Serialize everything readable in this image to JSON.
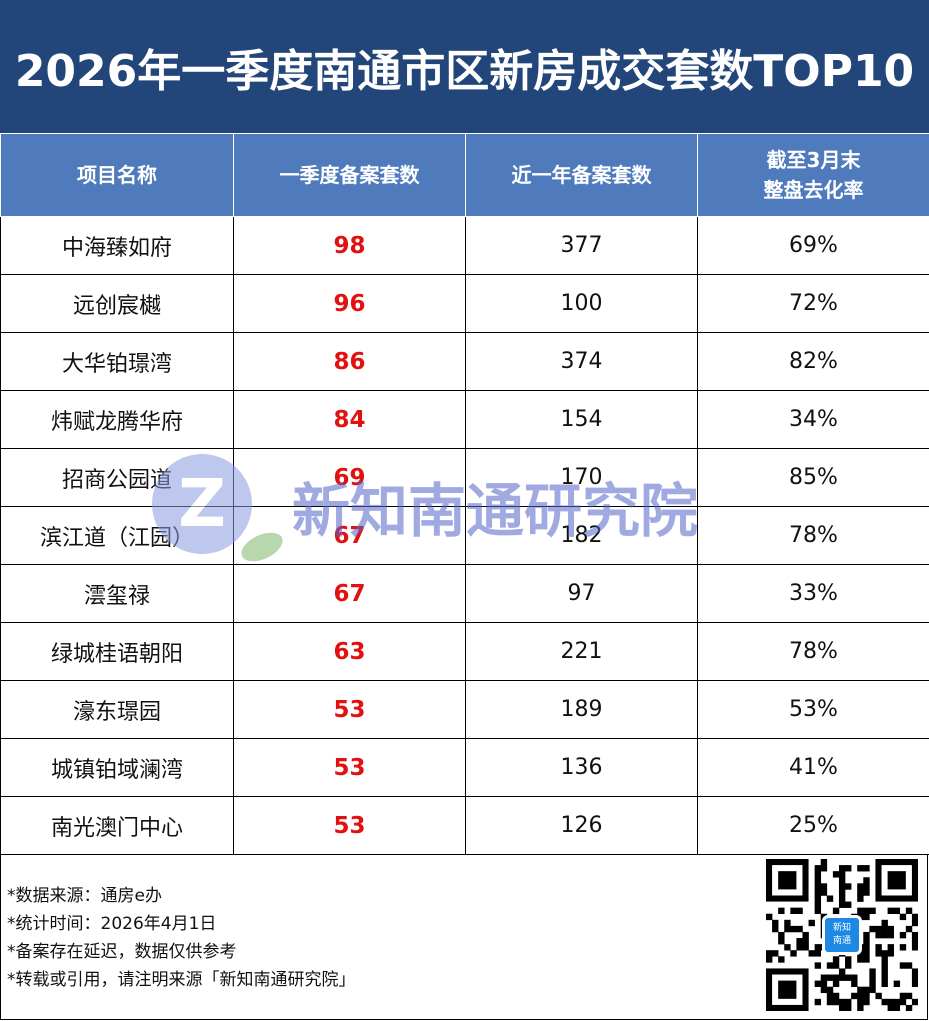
{
  "title": "2026年一季度南通市区新房成交套数TOP10",
  "headers": {
    "name": "项目名称",
    "q1": "一季度备案套数",
    "year": "近一年备案套数",
    "rate_line1": "截至3月末",
    "rate_line2": "整盘去化率"
  },
  "rows": [
    {
      "name": "中海臻如府",
      "q1": "98",
      "year": "377",
      "rate": "69%"
    },
    {
      "name": "远创宸樾",
      "q1": "96",
      "year": "100",
      "rate": "72%"
    },
    {
      "name": "大华铂璟湾",
      "q1": "86",
      "year": "374",
      "rate": "82%"
    },
    {
      "name": "炜赋龙腾华府",
      "q1": "84",
      "year": "154",
      "rate": "34%"
    },
    {
      "name": "招商公园道",
      "q1": "69",
      "year": "170",
      "rate": "85%"
    },
    {
      "name": "滨江道（江园）",
      "q1": "67",
      "year": "182",
      "rate": "78%"
    },
    {
      "name": "澐玺禄",
      "q1": "67",
      "year": "97",
      "rate": "33%"
    },
    {
      "name": "绿城桂语朝阳",
      "q1": "63",
      "year": "221",
      "rate": "78%"
    },
    {
      "name": "濠东璟园",
      "q1": "53",
      "year": "189",
      "rate": "53%"
    },
    {
      "name": "城镇铂域澜湾",
      "q1": "53",
      "year": "136",
      "rate": "41%"
    },
    {
      "name": "南光澳门中心",
      "q1": "53",
      "year": "126",
      "rate": "25%"
    }
  ],
  "notes": [
    "*数据来源：通房e办",
    "*统计时间：2026年4月1日",
    "*备案存在延迟，数据仅供参考",
    "*转载或引用，请注明来源「新知南通研究院」"
  ],
  "watermark": {
    "text": "新知南通研究院",
    "letter": "Z"
  },
  "qr": {
    "label_line1": "新知",
    "label_line2": "南通"
  },
  "colors": {
    "title_bg": "#23467a",
    "header_bg": "#4f7bbd",
    "highlight": "#e2100f",
    "qr_center": "#1e88e5"
  }
}
